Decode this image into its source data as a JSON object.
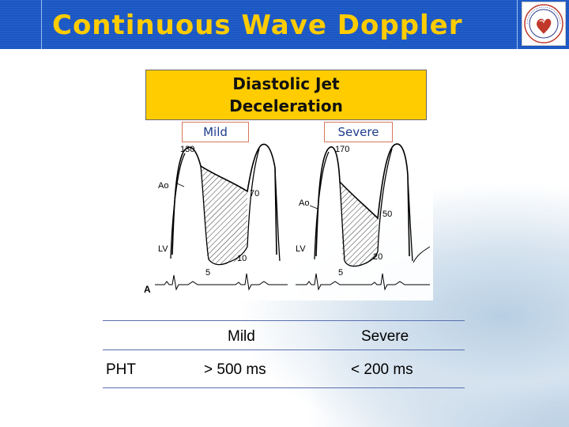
{
  "slide": {
    "title": "Continuous Wave Doppler"
  },
  "header": {
    "logo_icon": "society-emblem-icon"
  },
  "diagram": {
    "box_title": "Diastolic Jet\nDeceleration",
    "mild_label": "Mild",
    "severe_label": "Severe",
    "panel_letter": "A",
    "mild": {
      "ao": "Ao",
      "lv": "LV",
      "peak": "130",
      "end": "70",
      "low": "5",
      "lv_end": "10"
    },
    "severe": {
      "ao": "Ao",
      "lv": "LV",
      "peak": "170",
      "end": "50",
      "low": "5",
      "lv_end": "20"
    }
  },
  "table": {
    "headers": [
      "",
      "Mild",
      "Severe"
    ],
    "rows": [
      [
        "PHT",
        "> 500 ms",
        "< 200 ms"
      ]
    ]
  },
  "colors": {
    "header_blue": "#1a57c4",
    "title_yellow": "#ffcc00",
    "box_yellow": "#ffcc00",
    "tag_border": "#d9775a",
    "rule_blue": "#5a6fb0"
  }
}
